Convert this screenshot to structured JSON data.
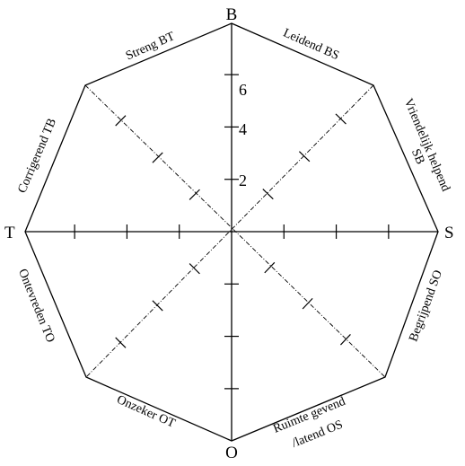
{
  "poles": {
    "top": "B",
    "right": "S",
    "bottom": "O",
    "left": "T"
  },
  "edges": {
    "top_left": "Streng BT",
    "top_right": "Leidend BS",
    "right_upper": [
      "Vriendelijk helpend",
      "SB"
    ],
    "right_lower": "Begrijpend SO",
    "bottom_right": [
      "Ruimte gevend",
      "/latend OS"
    ],
    "bottom_left": "Onzeker OT",
    "left_lower": "Ontevreden TO",
    "left_upper": "Corrigerend TB"
  },
  "scale": {
    "labels": [
      "2",
      "4",
      "6"
    ],
    "max": 7,
    "tick_step": 2
  },
  "colors": {
    "line": "#000000",
    "background": "#ffffff"
  }
}
